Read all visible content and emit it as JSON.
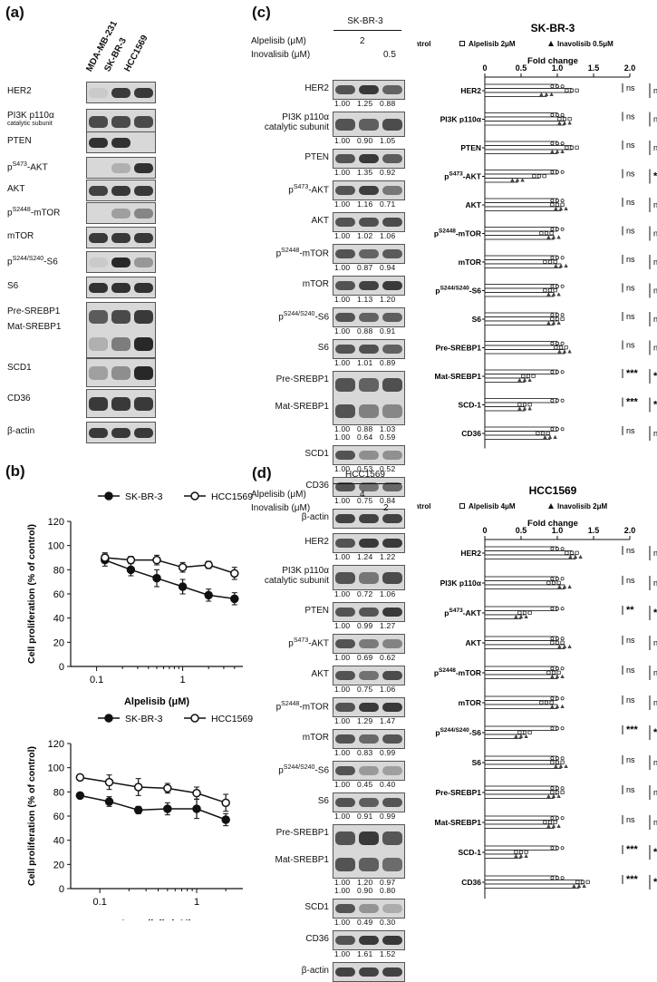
{
  "panel_labels": [
    "(a)",
    "(b)",
    "(c)",
    "(d)"
  ],
  "panel_a": {
    "cell_lines": [
      "MDA-MB-231",
      "SK-BR-3",
      "HCC1569"
    ],
    "rows": [
      {
        "label": "HER2",
        "sup": ""
      },
      {
        "label": "PI3K p110α",
        "sub_label": "catalytic subunit",
        "sup": ""
      },
      {
        "label": "PTEN",
        "sup": ""
      },
      {
        "label": "p",
        "sup": "S473",
        "suffix": "-AKT"
      },
      {
        "label": "AKT",
        "sup": ""
      },
      {
        "label": "p",
        "sup": "S2448",
        "suffix": "-mTOR"
      },
      {
        "label": "mTOR",
        "sup": ""
      },
      {
        "label": "p",
        "sup": "S244/S240",
        "suffix": "-S6"
      },
      {
        "label": "S6",
        "sup": ""
      },
      {
        "label": "Pre-SREBP1",
        "sup": ""
      },
      {
        "label": "Mat-SREBP1",
        "sup": ""
      },
      {
        "label": "SCD1",
        "sup": ""
      },
      {
        "label": "CD36",
        "sup": ""
      },
      {
        "label": "β-actin",
        "sup": ""
      }
    ]
  },
  "panel_c_blot": {
    "cell_line": "SK-BR-3",
    "drug1": "Alpelisib (μM)",
    "drug1_dose": "2",
    "drug2": "Inovalisib (μM)",
    "drug2_dose": "0.5",
    "rows": [
      {
        "label": "HER2",
        "q": "1.00   1.25   0.88"
      },
      {
        "label": "PI3K p110α",
        "sub_label": "catalytic subunit",
        "q": "1.00   0.90   1.05"
      },
      {
        "label": "PTEN",
        "q": "1.00   1.35   0.92"
      },
      {
        "label": "p",
        "sup": "S473",
        "suffix": "-AKT",
        "q": "1.00   1.16   0.71"
      },
      {
        "label": "AKT",
        "q": "1.00   1.02   1.06"
      },
      {
        "label": "p",
        "sup": "S2448",
        "suffix": "-mTOR",
        "q": "1.00   0.87   0.94"
      },
      {
        "label": "mTOR",
        "q": "1.00   1.13   1.20"
      },
      {
        "label": "p",
        "sup": "S244/S240",
        "suffix": "-S6",
        "q": "1.00   0.88   0.91"
      },
      {
        "label": "S6",
        "q": "1.00   1.01   0.89"
      },
      {
        "label": "Pre-SREBP1",
        "label2": "Mat-SREBP1",
        "q": "1.00   0.88   1.03",
        "q2": "1.00   0.64   0.59"
      },
      {
        "label": "SCD1",
        "q": "1.00   0.53   0.52"
      },
      {
        "label": "CD36",
        "q": "1.00   0.75   0.84"
      },
      {
        "label": "β-actin",
        "q": ""
      }
    ]
  },
  "panel_d_blot": {
    "cell_line": "HCC1569",
    "drug1": "Alpelisib (μM)",
    "drug1_dose": "4",
    "drug2": "Inovalisib (μM)",
    "drug2_dose": "2",
    "rows": [
      {
        "label": "HER2",
        "q": "1.00   1.24   1.22"
      },
      {
        "label": "PI3K p110α",
        "sub_label": "catalytic subunit",
        "q": "1.00   0.72   1.06"
      },
      {
        "label": "PTEN",
        "q": "1.00   0.99   1.27"
      },
      {
        "label": "p",
        "sup": "S473",
        "suffix": "-AKT",
        "q": "1.00   0.69   0.62"
      },
      {
        "label": "AKT",
        "q": "1.00   0.75   1.06"
      },
      {
        "label": "p",
        "sup": "S2448",
        "suffix": "-mTOR",
        "q": "1.00   1.29   1.47"
      },
      {
        "label": "mTOR",
        "q": "1.00   0.83   0.99"
      },
      {
        "label": "p",
        "sup": "S244/S240",
        "suffix": "-S6",
        "q": "1.00   0.45   0.40"
      },
      {
        "label": "S6",
        "q": "1.00   0.91   0.99"
      },
      {
        "label": "Pre-SREBP1",
        "label2": "Mat-SREBP1",
        "q": "1.00   1.20   0.97",
        "q2": "1.00   0.90   0.80"
      },
      {
        "label": "SCD1",
        "q": "1.00   0.49   0.30"
      },
      {
        "label": "CD36",
        "q": "1.00   1.61   1.52"
      },
      {
        "label": "β-actin",
        "q": ""
      }
    ]
  },
  "chart_data": [
    {
      "id": "b-top",
      "type": "line",
      "xlabel": "Alpelisib (μM)",
      "ylabel": "Cell proliferation (% of control)",
      "xscale": "log",
      "xlim": [
        0.05,
        5
      ],
      "ylim": [
        0,
        120
      ],
      "xticks": [
        0.1,
        1
      ],
      "xtick_labels": [
        "0.1",
        "1"
      ],
      "yticks": [
        0,
        20,
        40,
        60,
        80,
        100,
        120
      ],
      "x": [
        0.125,
        0.25,
        0.5,
        1,
        2,
        4
      ],
      "series": [
        {
          "name": "SK-BR-3",
          "marker": "filled",
          "values": [
            88,
            80,
            73,
            66,
            59,
            56
          ],
          "err": [
            5,
            5,
            7,
            6,
            5,
            5
          ]
        },
        {
          "name": "HCC1569",
          "marker": "open",
          "values": [
            90,
            88,
            88,
            82,
            84,
            77
          ],
          "err": [
            4,
            3,
            4,
            4,
            3,
            5
          ]
        }
      ]
    },
    {
      "id": "b-bottom",
      "type": "line",
      "xlabel": "Inavolisib (μM)",
      "ylabel": "Cell proliferation (% of control)",
      "xscale": "log",
      "xlim": [
        0.05,
        3
      ],
      "ylim": [
        0,
        120
      ],
      "xticks": [
        0.1,
        1
      ],
      "xtick_labels": [
        "0.1",
        "1"
      ],
      "yticks": [
        0,
        20,
        40,
        60,
        80,
        100,
        120
      ],
      "x": [
        0.0625,
        0.125,
        0.25,
        0.5,
        1,
        2
      ],
      "series": [
        {
          "name": "SK-BR-3",
          "marker": "filled",
          "values": [
            77,
            72,
            65,
            66,
            66,
            57
          ],
          "err": [
            2,
            4,
            3,
            5,
            8,
            5
          ]
        },
        {
          "name": "HCC1569",
          "marker": "open",
          "values": [
            92,
            88,
            84,
            83,
            79,
            71
          ],
          "err": [
            2,
            6,
            7,
            4,
            5,
            7
          ]
        }
      ]
    },
    {
      "id": "c-bars",
      "type": "bar",
      "orientation": "horizontal",
      "title": "SK-BR-3",
      "xlabel": "Fold change",
      "xlim": [
        0,
        2.0
      ],
      "xticks": [
        0,
        0.5,
        1.0,
        1.5,
        2.0
      ],
      "xtick_labels": [
        "0",
        "0.5",
        "1.0",
        "1.5",
        "2.0"
      ],
      "legend": [
        "Control",
        "Alpelisib 2μM",
        "Inavolisib 0.5μM"
      ],
      "categories": [
        "HER2",
        "PI3K p110α",
        "PTEN",
        "pS473-AKT",
        "AKT",
        "pS2448-mTOR",
        "mTOR",
        "pS244/S240-S6",
        "S6",
        "Pre-SREBP1",
        "Mat-SREBP1",
        "SCD-1",
        "CD36"
      ],
      "series": [
        {
          "name": "Control",
          "values": [
            1,
            1,
            1,
            1,
            1,
            1,
            1,
            1,
            1,
            1,
            1,
            1,
            1
          ]
        },
        {
          "name": "Alpelisib 2μM",
          "values": [
            1.2,
            1.1,
            1.2,
            0.75,
            1.0,
            0.85,
            0.9,
            0.9,
            1.0,
            1.05,
            0.6,
            0.55,
            0.8
          ]
        },
        {
          "name": "Inavolisib 0.5μM",
          "values": [
            0.85,
            1.1,
            1.0,
            0.45,
            1.05,
            0.95,
            1.05,
            0.95,
            0.95,
            1.1,
            0.55,
            0.55,
            0.9
          ]
        }
      ],
      "sig_alpelisib": [
        "ns",
        "ns",
        "ns",
        "ns",
        "ns",
        "ns",
        "ns",
        "ns",
        "ns",
        "ns",
        "***",
        "***",
        "ns"
      ],
      "sig_inavolisib": [
        "ns",
        "ns",
        "ns",
        "***",
        "ns",
        "ns",
        "ns",
        "ns",
        "ns",
        "ns",
        "***",
        "***",
        "ns"
      ]
    },
    {
      "id": "d-bars",
      "type": "bar",
      "orientation": "horizontal",
      "title": "HCC1569",
      "xlabel": "Fold change",
      "xlim": [
        0,
        2.0
      ],
      "xticks": [
        0,
        0.5,
        1.0,
        1.5,
        2.0
      ],
      "xtick_labels": [
        "0",
        "0.5",
        "1.0",
        "1.5",
        "2.0"
      ],
      "legend": [
        "Control",
        "Alpelisib 4μM",
        "Inavolisib 2μM"
      ],
      "categories": [
        "HER2",
        "PI3K p110α",
        "pS473-AKT",
        "AKT",
        "pS2448-mTOR",
        "mTOR",
        "pS244/S240-S6",
        "S6",
        "Pre-SREBP1",
        "Mat-SREBP1",
        "SCD-1",
        "CD36"
      ],
      "series": [
        {
          "name": "Control",
          "values": [
            1,
            1,
            1,
            1,
            1,
            1,
            1,
            1,
            1,
            1,
            1,
            1
          ]
        },
        {
          "name": "Alpelisib 4μM",
          "values": [
            1.2,
            0.95,
            0.55,
            1.0,
            0.95,
            0.85,
            0.55,
            1.0,
            1.0,
            0.9,
            0.5,
            1.35
          ]
        },
        {
          "name": "Inavolisib 2μM",
          "values": [
            1.25,
            1.1,
            0.5,
            1.1,
            1.0,
            1.0,
            0.5,
            1.05,
            0.95,
            0.95,
            0.5,
            1.3
          ]
        }
      ],
      "sig_alpelisib": [
        "ns",
        "ns",
        "**",
        "ns",
        "ns",
        "ns",
        "***",
        "ns",
        "ns",
        "ns",
        "***",
        "***"
      ],
      "sig_inavolisib": [
        "ns",
        "ns",
        "***",
        "ns",
        "ns",
        "ns",
        "***",
        "ns",
        "ns",
        "ns",
        "***",
        "**"
      ]
    }
  ]
}
